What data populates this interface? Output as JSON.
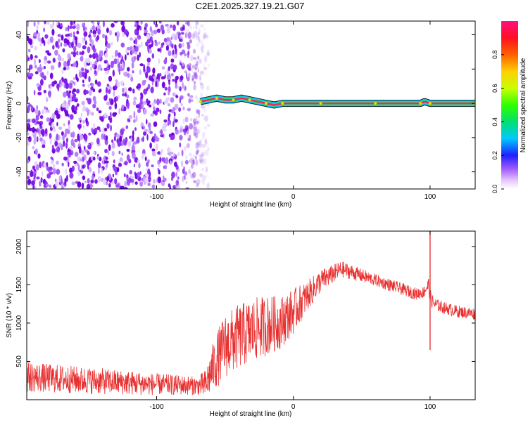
{
  "title": "C2E1.2025.327.19.21.G07",
  "chart_data": [
    {
      "type": "heatmap",
      "xlabel": "Height of straight line (km)",
      "ylabel": "Frequency (Hz)",
      "xlim": [
        -195,
        133
      ],
      "ylim": [
        -50,
        48
      ],
      "x_ticks": [
        -100,
        0,
        100
      ],
      "x_tick_labels": [
        "-100",
        "0",
        "100"
      ],
      "y_ticks": [
        -40,
        -20,
        0,
        20,
        40
      ],
      "y_tick_labels": [
        "-40",
        "-20",
        "0",
        "20",
        "40"
      ],
      "noise_region": {
        "x_from": -195,
        "x_to": -66
      },
      "signal_trace": {
        "x": [
          -68,
          -62,
          -56,
          -50,
          -44,
          -38,
          -32,
          -26,
          -20,
          -14,
          -8,
          0,
          20,
          40,
          60,
          80,
          93,
          96,
          100,
          120,
          133
        ],
        "y": [
          1,
          2,
          3,
          2,
          2,
          3,
          2,
          1,
          0,
          -1,
          0,
          0,
          0,
          0,
          0,
          0,
          0,
          1,
          0,
          0,
          0
        ]
      },
      "colorbar": {
        "label": "Normalized spectral amplitude",
        "range": [
          0.0,
          1.0
        ],
        "ticks": [
          0.0,
          0.2,
          0.4,
          0.6,
          0.8
        ],
        "tick_labels": [
          "0.0",
          "0.2",
          "0.4",
          "0.6",
          "0.8"
        ]
      }
    },
    {
      "type": "line",
      "xlabel": "Height of straight line (km)",
      "ylabel": "SNR (10 * v/v)",
      "xlim": [
        -195,
        133
      ],
      "ylim": [
        0,
        2200
      ],
      "x_ticks": [
        -100,
        0,
        100
      ],
      "x_tick_labels": [
        "-100",
        "0",
        "100"
      ],
      "y_ticks": [
        500,
        1000,
        1500,
        2000
      ],
      "y_tick_labels": [
        "500",
        "1000",
        "1500",
        "2000"
      ],
      "series": [
        {
          "color": "#e83030",
          "x": [
            -195,
            -180,
            -160,
            -140,
            -120,
            -100,
            -80,
            -70,
            -64,
            -60,
            -55,
            -50,
            -40,
            -30,
            -20,
            -10,
            0,
            10,
            20,
            30,
            35,
            40,
            50,
            60,
            70,
            80,
            90,
            95,
            99,
            100,
            101,
            103,
            110,
            120,
            133
          ],
          "y": [
            300,
            280,
            260,
            240,
            220,
            200,
            190,
            180,
            200,
            380,
            550,
            700,
            820,
            900,
            970,
            1000,
            1150,
            1350,
            1550,
            1650,
            1700,
            1680,
            1620,
            1560,
            1500,
            1440,
            1380,
            1400,
            1500,
            1350,
            1300,
            1250,
            1200,
            1150,
            1120
          ],
          "noise_amplitude": [
            200,
            190,
            180,
            170,
            160,
            140,
            130,
            120,
            200,
            300,
            380,
            420,
            430,
            420,
            400,
            350,
            300,
            200,
            150,
            120,
            110,
            100,
            90,
            80,
            80,
            80,
            80,
            80,
            100,
            100,
            100,
            80,
            80,
            80,
            80
          ]
        }
      ],
      "annotations": [
        {
          "x": 100,
          "y": 2200,
          "type": "spike"
        },
        {
          "x": 100,
          "y": 650,
          "type": "dip"
        }
      ]
    }
  ]
}
